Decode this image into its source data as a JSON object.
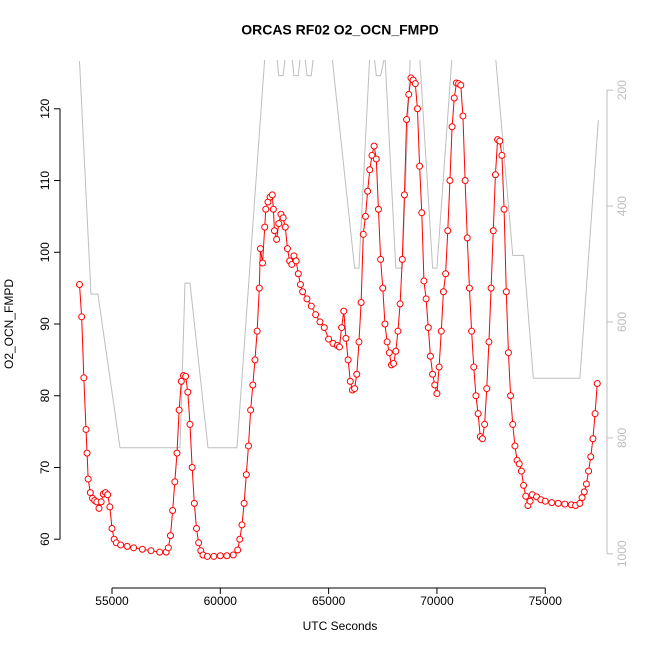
{
  "chart_data": {
    "type": "line",
    "title": "ORCAS RF02 O2_OCN_FMPD",
    "x_label": "UTC Seconds",
    "y_label": "O2_OCN_FMPD",
    "xlim": [
      52600,
      77850
    ],
    "xticks": [
      55000,
      60000,
      65000,
      70000,
      75000
    ],
    "ylim": [
      53.2,
      126.8
    ],
    "yticks": [
      60,
      70,
      80,
      90,
      100,
      110,
      120
    ],
    "y2lim": [
      1059,
      148
    ],
    "y2ticks": [
      200,
      400,
      600,
      800,
      1000
    ],
    "series": [
      {
        "color": "#ff0000",
        "markers": true,
        "x": [
          53500,
          53600,
          53700,
          53800,
          53850,
          53900,
          54000,
          54100,
          54200,
          54300,
          54400,
          54500,
          54600,
          54700,
          54800,
          54900,
          55000,
          55100,
          55200,
          55400,
          55700,
          56000,
          56400,
          56800,
          57200,
          57500,
          57600,
          57700,
          57800,
          57900,
          58000,
          58100,
          58200,
          58300,
          58400,
          58500,
          58600,
          58700,
          58800,
          58900,
          59000,
          59100,
          59200,
          59400,
          59700,
          60000,
          60300,
          60600,
          60800,
          60900,
          61000,
          61100,
          61200,
          61300,
          61400,
          61500,
          61600,
          61700,
          61800,
          61850,
          61950,
          62050,
          62100,
          62200,
          62300,
          62400,
          62450,
          62500,
          62600,
          62700,
          62800,
          62900,
          63000,
          63100,
          63200,
          63300,
          63400,
          63500,
          63600,
          63700,
          63800,
          64000,
          64200,
          64400,
          64600,
          64800,
          65000,
          65200,
          65400,
          65500,
          65600,
          65700,
          65800,
          65900,
          66000,
          66100,
          66200,
          66300,
          66400,
          66500,
          66600,
          66700,
          66800,
          66900,
          67000,
          67100,
          67200,
          67300,
          67400,
          67500,
          67600,
          67700,
          67800,
          67900,
          68000,
          68100,
          68200,
          68300,
          68400,
          68500,
          68600,
          68700,
          68800,
          68900,
          69000,
          69100,
          69200,
          69300,
          69400,
          69500,
          69600,
          69700,
          69800,
          69900,
          70000,
          70100,
          70200,
          70300,
          70400,
          70500,
          70600,
          70700,
          70800,
          70900,
          71000,
          71100,
          71200,
          71300,
          71400,
          71500,
          71600,
          71700,
          71800,
          71900,
          72000,
          72100,
          72200,
          72300,
          72400,
          72500,
          72600,
          72700,
          72800,
          72900,
          73000,
          73100,
          73200,
          73300,
          73400,
          73500,
          73600,
          73700,
          73800,
          73900,
          74000,
          74100,
          74200,
          74300,
          74400,
          74600,
          74800,
          75000,
          75300,
          75600,
          75900,
          76200,
          76400,
          76600,
          76700,
          76800,
          76900,
          77000,
          77100,
          77200,
          77300,
          77400
        ],
        "values": [
          95.5,
          91,
          82.5,
          75.3,
          72,
          68.4,
          66.5,
          65.7,
          65.4,
          65.2,
          64.3,
          65.2,
          66.3,
          66.5,
          66.2,
          64.5,
          61.5,
          60,
          59.5,
          59.2,
          59,
          58.8,
          58.6,
          58.4,
          58.2,
          58.2,
          58.8,
          60.5,
          64,
          68,
          72,
          78,
          82,
          82.8,
          82.7,
          80.5,
          76,
          70,
          65,
          61.5,
          59.5,
          58.4,
          57.8,
          57.6,
          57.6,
          57.7,
          57.7,
          57.8,
          58.5,
          60,
          62,
          65,
          69,
          73,
          78,
          81.5,
          85,
          89,
          95,
          100.5,
          98.5,
          103.5,
          106,
          107,
          107.7,
          108,
          106,
          103,
          101.8,
          104,
          105.3,
          104.8,
          103.5,
          100.5,
          98.8,
          98.3,
          99.5,
          98.8,
          97,
          95.5,
          94.5,
          93.5,
          92.5,
          91.3,
          90.3,
          89.5,
          87.9,
          87.3,
          87,
          86.8,
          89.5,
          91.8,
          88,
          85,
          82,
          80.8,
          81,
          83,
          87.5,
          93,
          102.5,
          105,
          108.5,
          111.5,
          113.5,
          114.8,
          113,
          106,
          99,
          95,
          90,
          87.5,
          86,
          84.3,
          84.5,
          86.2,
          89,
          92.8,
          99,
          108,
          118.5,
          122,
          124.3,
          124,
          123.5,
          120,
          112,
          105.5,
          96,
          93.5,
          89.5,
          85.5,
          83,
          81.5,
          80.3,
          84,
          89,
          94.5,
          97,
          103,
          110,
          117.5,
          121.5,
          123.6,
          123.5,
          123.3,
          119,
          110,
          102,
          95,
          89,
          84,
          80,
          77.5,
          74.3,
          74,
          76,
          81,
          87.5,
          95,
          103,
          110.8,
          115.7,
          115.5,
          113.5,
          106,
          94.5,
          86,
          80,
          76,
          73,
          71,
          70.5,
          69.5,
          67.5,
          66,
          64.7,
          65.3,
          66.2,
          65.9,
          65.5,
          65.3,
          65.1,
          65,
          64.9,
          64.8,
          64.7,
          65,
          65.8,
          66.6,
          67.7,
          69.5,
          71.5,
          74,
          77.5,
          81.7
        ]
      },
      {
        "color": "#bebebe",
        "axis": "y2",
        "markers": false,
        "x": [
          53500,
          54030,
          54350,
          55370,
          55740,
          58140,
          58370,
          58600,
          59430,
          60770,
          62060,
          62300,
          62600,
          62700,
          62900,
          63000,
          63300,
          63400,
          63600,
          63700,
          63900,
          64000,
          64200,
          64300,
          65150,
          66200,
          66400,
          66900,
          67100,
          67200,
          67400,
          67600,
          68100,
          68400,
          68770,
          69200,
          69800,
          70000,
          70700,
          72700,
          73500,
          74000,
          74450,
          76600,
          77450
        ],
        "values": [
          150,
          552,
          552,
          817,
          817,
          817,
          533,
          533,
          817,
          817,
          140,
          140,
          140,
          175,
          175,
          140,
          140,
          175,
          175,
          140,
          140,
          175,
          175,
          140,
          140,
          507,
          507,
          140,
          140,
          175,
          175,
          140,
          507,
          507,
          140,
          140,
          507,
          507,
          140,
          140,
          485,
          485,
          697,
          697,
          252
        ]
      }
    ]
  }
}
